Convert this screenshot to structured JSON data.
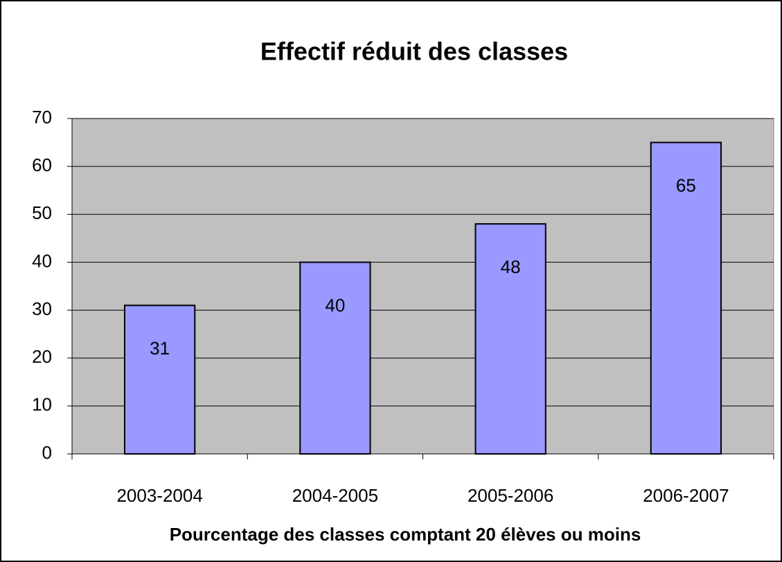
{
  "chart_data": {
    "type": "bar",
    "title": "Effectif réduit des classes",
    "x_label": "Pourcentage des classes comptant 20 élèves ou moins",
    "categories": [
      "2003-2004",
      "2004-2005",
      "2005-2006",
      "2006-2007"
    ],
    "values": [
      31,
      40,
      48,
      65
    ],
    "color": "#9999ff",
    "ylim": [
      0,
      70
    ],
    "yticks": [
      0,
      10,
      20,
      30,
      40,
      50,
      60,
      70
    ],
    "grid": true
  }
}
